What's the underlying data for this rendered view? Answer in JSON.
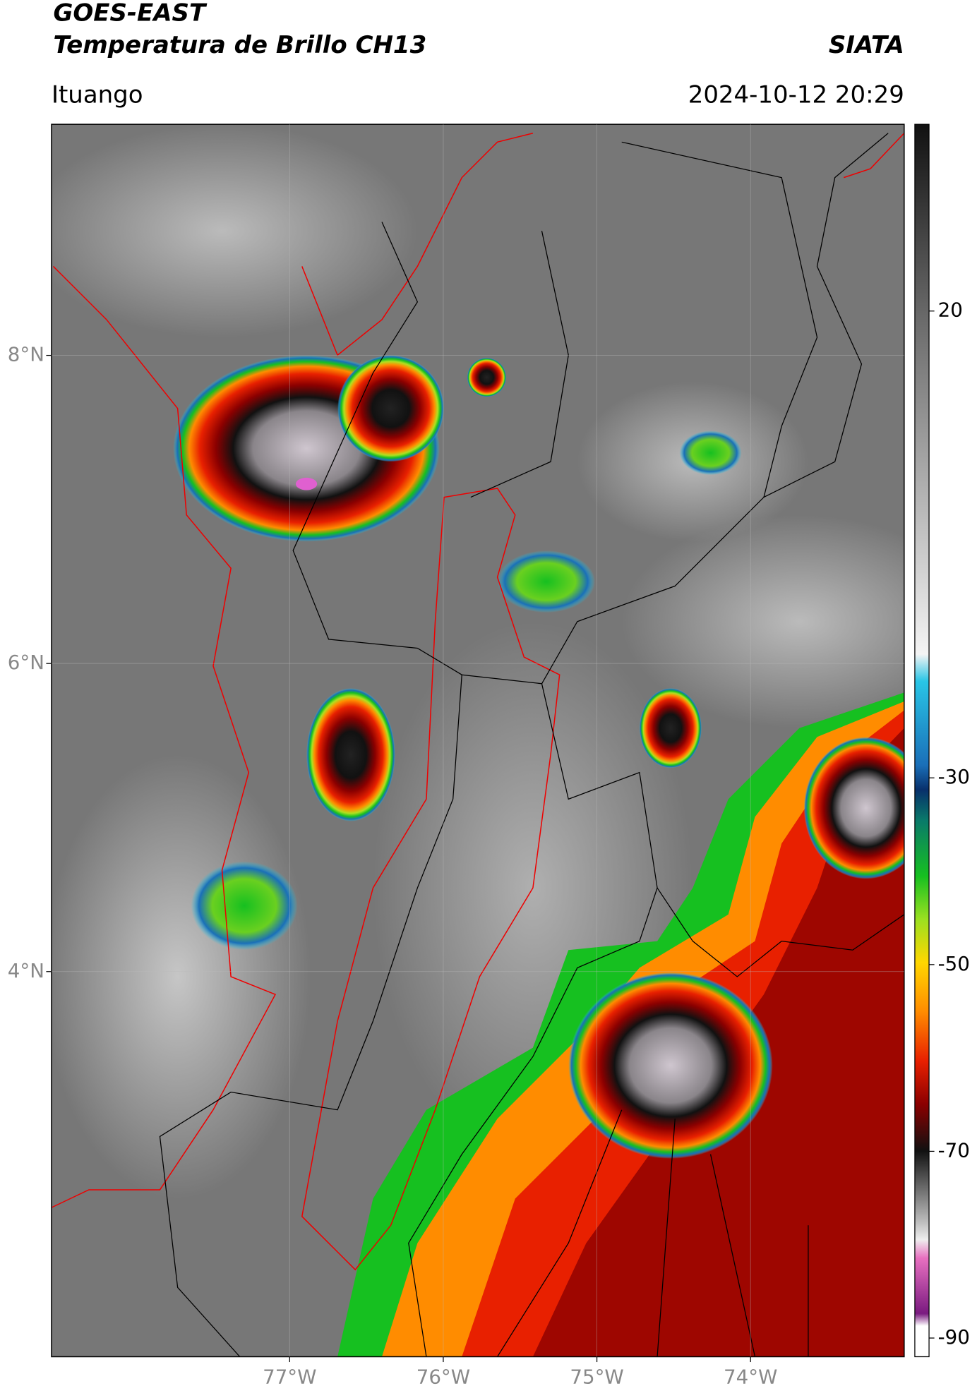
{
  "header": {
    "title": "GOES-EAST",
    "subtitle": "Temperatura de Brillo CH13",
    "source": "SIATA",
    "location": "Ituango",
    "datetime": "2024-10-12 20:29"
  },
  "map": {
    "latlim": [
      1.5,
      9.5
    ],
    "lonlim": [
      -78.55,
      -73.0
    ],
    "latticks": [
      {
        "value": 8,
        "label": "8°N"
      },
      {
        "value": 6,
        "label": "6°N"
      },
      {
        "value": 4,
        "label": "4°N"
      }
    ],
    "lonticks": [
      {
        "value": -77,
        "label": "77°W"
      },
      {
        "value": -76,
        "label": "76°W"
      },
      {
        "value": -75,
        "label": "75°W"
      },
      {
        "value": -74,
        "label": "74°W"
      }
    ],
    "grid": true
  },
  "colorbar": {
    "lim": [
      -92,
      40
    ],
    "ticks": [
      20,
      -30,
      -50,
      -70,
      -90
    ]
  }
}
